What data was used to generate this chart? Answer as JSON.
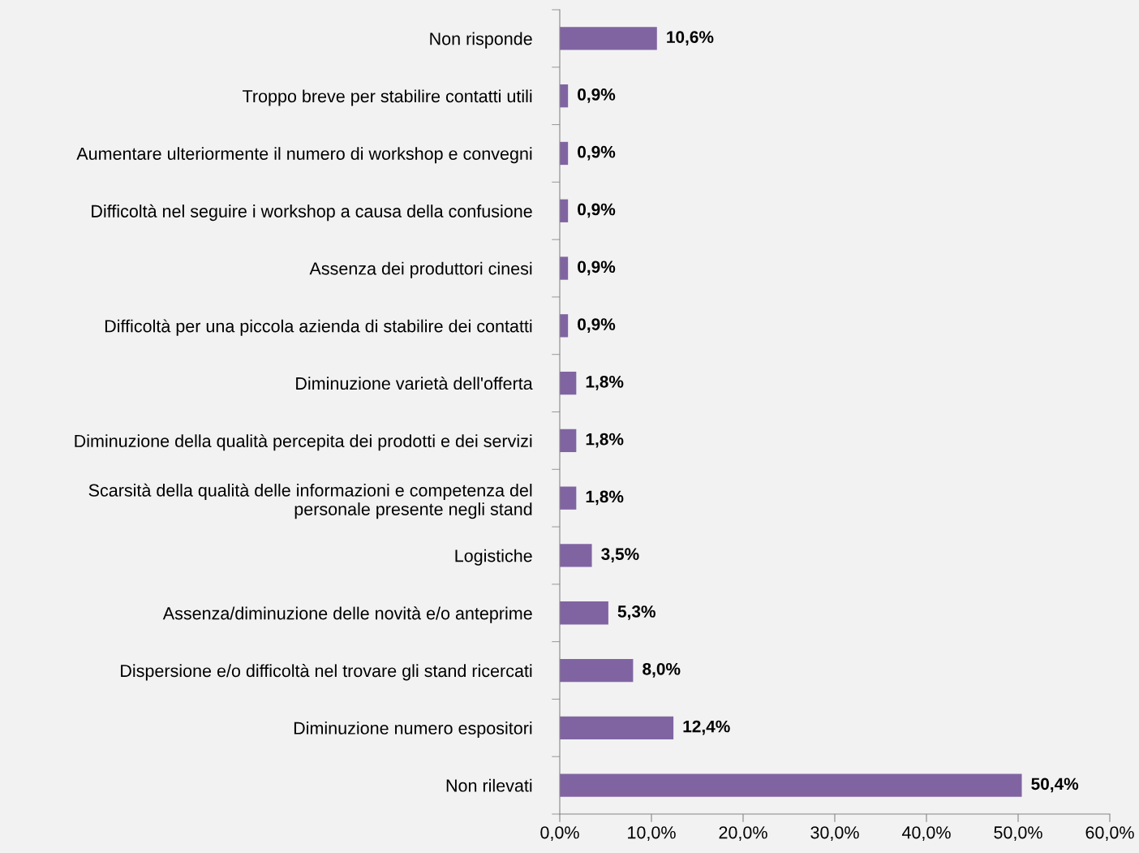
{
  "chart_data": {
    "type": "bar",
    "orientation": "horizontal",
    "categories": [
      "Non risponde",
      "Troppo breve per stabilire contatti utili",
      "Aumentare ulteriormente il numero di workshop e convegni",
      "Difficoltà nel seguire i workshop a causa della confusione",
      "Assenza dei produttori cinesi",
      "Difficoltà per una piccola azienda di stabilire dei contatti",
      "Diminuzione varietà dell'offerta",
      "Diminuzione della qualità percepita dei prodotti e dei servizi",
      "Scarsità della qualità delle informazioni e competenza del\npersonale presente negli stand",
      "Logistiche",
      "Assenza/diminuzione delle novità e/o anteprime",
      "Dispersione e/o difficoltà nel trovare gli stand ricercati",
      "Diminuzione numero espositori",
      "Non rilevati"
    ],
    "values": [
      10.6,
      0.9,
      0.9,
      0.9,
      0.9,
      0.9,
      1.8,
      1.8,
      1.8,
      3.5,
      5.3,
      8.0,
      12.4,
      50.4
    ],
    "value_labels": [
      "10,6%",
      "0,9%",
      "0,9%",
      "0,9%",
      "0,9%",
      "0,9%",
      "1,8%",
      "1,8%",
      "1,8%",
      "3,5%",
      "5,3%",
      "8,0%",
      "12,4%",
      "50,4%"
    ],
    "color": "#8064a2",
    "xlim": [
      0,
      60
    ],
    "xticks": [
      {
        "value": 0,
        "label": "0,0%"
      },
      {
        "value": 10,
        "label": "10,0%"
      },
      {
        "value": 20,
        "label": "20,0%"
      },
      {
        "value": 30,
        "label": "30,0%"
      },
      {
        "value": 40,
        "label": "40,0%"
      },
      {
        "value": 50,
        "label": "50,0%"
      },
      {
        "value": 60,
        "label": "60,0%"
      }
    ],
    "grid": false,
    "legend": false
  }
}
